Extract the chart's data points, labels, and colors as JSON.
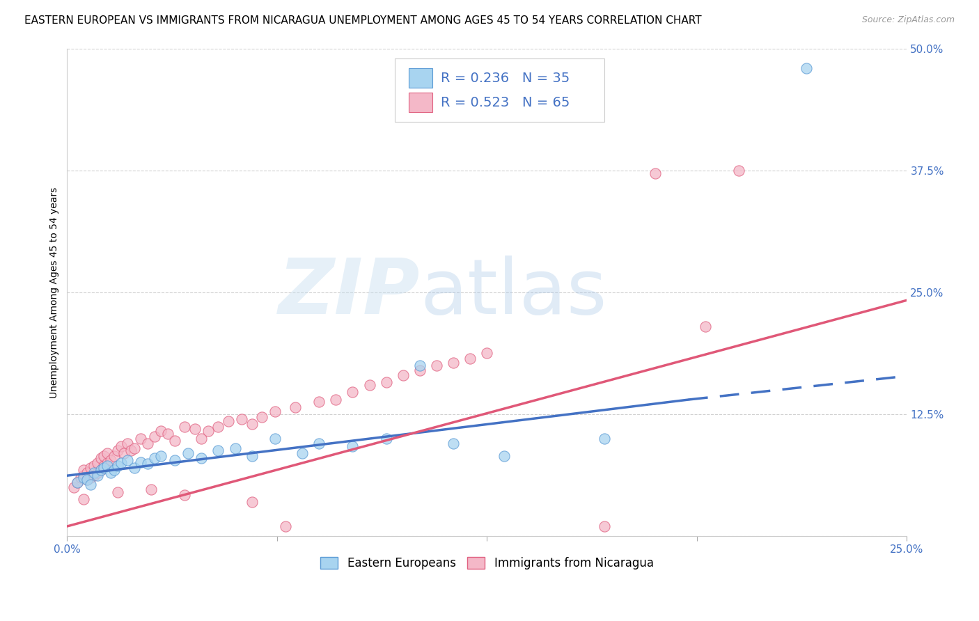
{
  "title": "EASTERN EUROPEAN VS IMMIGRANTS FROM NICARAGUA UNEMPLOYMENT AMONG AGES 45 TO 54 YEARS CORRELATION CHART",
  "source": "Source: ZipAtlas.com",
  "ylabel": "Unemployment Among Ages 45 to 54 years",
  "xlim": [
    0.0,
    0.25
  ],
  "ylim": [
    0.0,
    0.5
  ],
  "xticks": [
    0.0,
    0.0625,
    0.125,
    0.1875,
    0.25
  ],
  "yticks": [
    0.0,
    0.125,
    0.25,
    0.375,
    0.5
  ],
  "xtick_labels": [
    "0.0%",
    "",
    "",
    "",
    "25.0%"
  ],
  "ytick_labels": [
    "",
    "12.5%",
    "25.0%",
    "37.5%",
    "50.0%"
  ],
  "background_color": "#ffffff",
  "grid_color": "#cccccc",
  "blue_color": "#a8d4f0",
  "blue_edge_color": "#5b9bd5",
  "blue_line_color": "#4472c4",
  "pink_color": "#f4b8c8",
  "pink_edge_color": "#e06080",
  "pink_line_color": "#e05878",
  "legend_label_blue": "Eastern Europeans",
  "legend_label_pink": "Immigrants from Nicaragua",
  "title_fontsize": 11,
  "axis_label_fontsize": 10,
  "tick_fontsize": 11,
  "legend_fontsize": 13,
  "source_fontsize": 9
}
